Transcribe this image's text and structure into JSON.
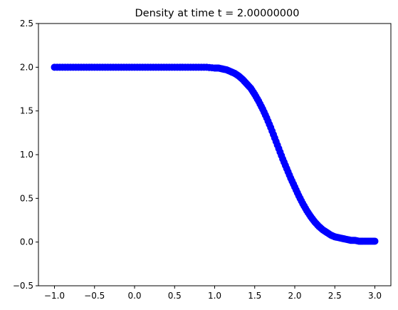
{
  "chart_data": {
    "type": "scatter",
    "title": "Density at time t =     2.00000000",
    "xlabel": "",
    "ylabel": "",
    "xlim": [
      -1.2,
      3.2
    ],
    "ylim": [
      -0.5,
      2.5
    ],
    "xticks": [
      -1.0,
      -0.5,
      0.0,
      0.5,
      1.0,
      1.5,
      2.0,
      2.5,
      3.0
    ],
    "xtick_labels": [
      "−1.0",
      "−0.5",
      "0.0",
      "0.5",
      "1.0",
      "1.5",
      "2.0",
      "2.5",
      "3.0"
    ],
    "yticks": [
      -0.5,
      0.0,
      0.5,
      1.0,
      1.5,
      2.0,
      2.5
    ],
    "ytick_labels": [
      "−0.5",
      "0.0",
      "0.5",
      "1.0",
      "1.5",
      "2.0",
      "2.5"
    ],
    "grid": false,
    "marker_color": "#0000ff",
    "series": [
      {
        "x": [
          -1.0,
          -0.9,
          -0.8,
          -0.7,
          -0.6,
          -0.5,
          -0.4,
          -0.3,
          -0.2,
          -0.1,
          0.0,
          0.1,
          0.2,
          0.3,
          0.4,
          0.5,
          0.6,
          0.7,
          0.8,
          0.9,
          1.0,
          1.05,
          1.1,
          1.15,
          1.2,
          1.25,
          1.3,
          1.35,
          1.4,
          1.45,
          1.5,
          1.55,
          1.6,
          1.65,
          1.7,
          1.75,
          1.8,
          1.85,
          1.9,
          1.95,
          2.0,
          2.05,
          2.1,
          2.15,
          2.2,
          2.25,
          2.3,
          2.35,
          2.4,
          2.45,
          2.5,
          2.55,
          2.6,
          2.65,
          2.7,
          2.75,
          2.8,
          2.85,
          2.9,
          2.95,
          3.0
        ],
        "y": [
          2.0,
          2.0,
          2.0,
          2.0,
          2.0,
          2.0,
          2.0,
          2.0,
          2.0,
          2.0,
          2.0,
          2.0,
          2.0,
          2.0,
          2.0,
          2.0,
          2.0,
          2.0,
          2.0,
          2.0,
          1.99,
          1.99,
          1.98,
          1.97,
          1.95,
          1.93,
          1.9,
          1.86,
          1.81,
          1.76,
          1.69,
          1.61,
          1.52,
          1.42,
          1.31,
          1.19,
          1.07,
          0.95,
          0.84,
          0.73,
          0.63,
          0.53,
          0.44,
          0.36,
          0.29,
          0.23,
          0.18,
          0.14,
          0.11,
          0.08,
          0.06,
          0.05,
          0.04,
          0.03,
          0.02,
          0.02,
          0.01,
          0.01,
          0.01,
          0.01,
          0.01
        ]
      }
    ]
  }
}
